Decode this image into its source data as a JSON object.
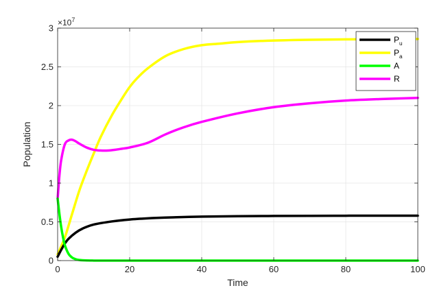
{
  "chart_data": {
    "type": "line",
    "xlabel": "Time",
    "ylabel": "Population",
    "xlim": [
      0,
      100
    ],
    "ylim": [
      0,
      30000000
    ],
    "xticks": [
      0,
      20,
      40,
      60,
      80,
      100
    ],
    "xtick_labels": [
      "0",
      "20",
      "40",
      "60",
      "80",
      "100"
    ],
    "yticks": [
      0,
      5000000,
      10000000,
      15000000,
      20000000,
      25000000,
      30000000
    ],
    "ytick_labels": [
      "0",
      "0.5",
      "1",
      "1.5",
      "2",
      "2.5",
      "3"
    ],
    "y_exponent": {
      "base": "×10",
      "power": "7"
    },
    "grid": true,
    "legend_position": "top-right",
    "series": [
      {
        "name": "P_u",
        "label_main": "P",
        "label_sub": "u",
        "color": "#000000",
        "x": [
          0,
          1,
          2,
          3,
          5,
          7,
          10,
          15,
          20,
          25,
          30,
          40,
          50,
          60,
          70,
          80,
          90,
          100
        ],
        "y": [
          500000,
          1400000,
          2200000,
          2800000,
          3600000,
          4150000,
          4650000,
          5050000,
          5300000,
          5450000,
          5550000,
          5680000,
          5730000,
          5760000,
          5780000,
          5790000,
          5800000,
          5800000
        ]
      },
      {
        "name": "P_a",
        "label_main": "P",
        "label_sub": "a",
        "color": "#ffff00",
        "x": [
          0,
          2,
          4,
          6,
          8,
          10,
          12,
          15,
          18,
          20,
          22,
          25,
          30,
          35,
          40,
          45,
          50,
          60,
          70,
          80,
          90,
          100
        ],
        "y": [
          800000,
          3000000,
          6000000,
          9000000,
          11500000,
          13800000,
          16000000,
          18700000,
          21000000,
          22400000,
          23500000,
          24800000,
          26400000,
          27300000,
          27800000,
          28000000,
          28200000,
          28400000,
          28500000,
          28550000,
          28580000,
          28600000
        ]
      },
      {
        "name": "A",
        "label_main": "A",
        "label_sub": "",
        "color": "#00ff00",
        "x": [
          0,
          0.5,
          1,
          1.5,
          2,
          3,
          4,
          5,
          6,
          8,
          10,
          15,
          20,
          40,
          60,
          80,
          100
        ],
        "y": [
          8000000,
          6000000,
          4300000,
          3000000,
          2000000,
          900000,
          400000,
          180000,
          80000,
          20000,
          5000,
          0,
          0,
          0,
          0,
          0,
          0
        ]
      },
      {
        "name": "R",
        "label_main": "R",
        "label_sub": "",
        "color": "#ff00ff",
        "x": [
          0,
          0.5,
          1,
          2,
          3,
          4,
          5,
          6,
          8,
          10,
          12,
          14,
          16,
          18,
          20,
          25,
          30,
          35,
          40,
          50,
          60,
          70,
          80,
          90,
          100
        ],
        "y": [
          8000000,
          11000000,
          13000000,
          15000000,
          15500000,
          15600000,
          15400000,
          15100000,
          14600000,
          14300000,
          14200000,
          14200000,
          14300000,
          14450000,
          14600000,
          15200000,
          16300000,
          17200000,
          17900000,
          19000000,
          19800000,
          20300000,
          20650000,
          20850000,
          21000000
        ]
      }
    ]
  }
}
